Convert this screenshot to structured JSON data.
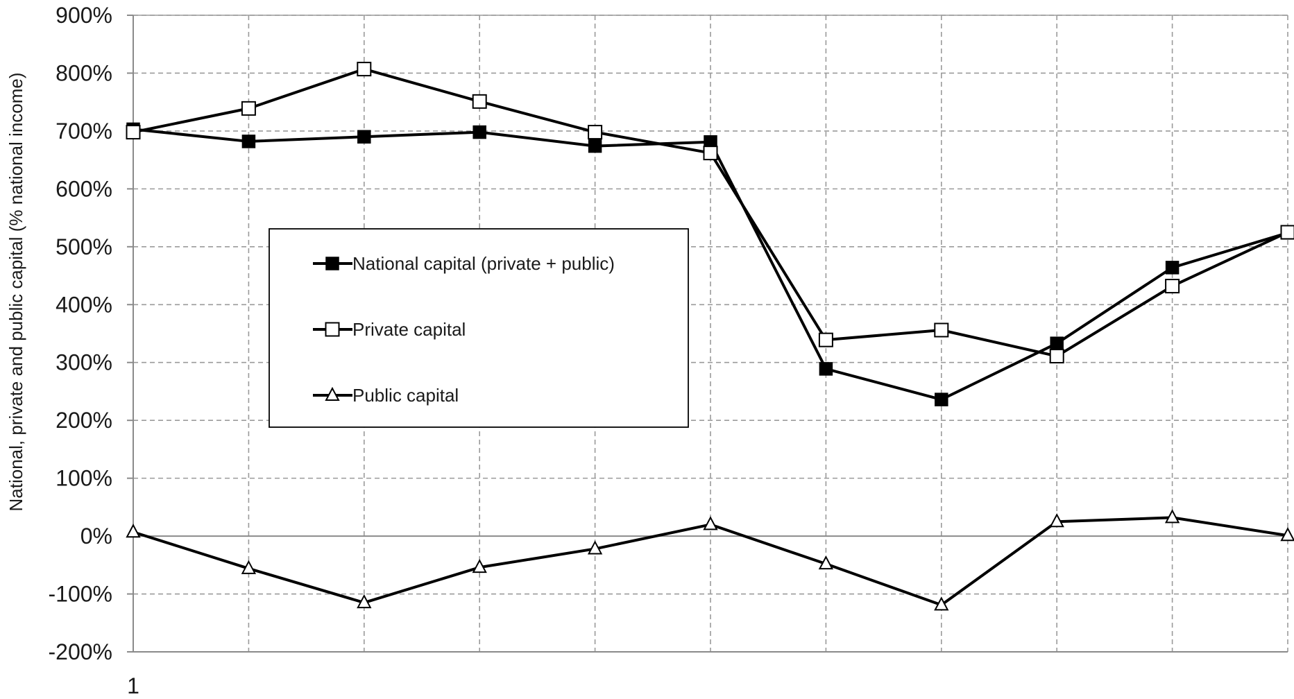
{
  "chart_data": {
    "type": "line",
    "x_tick_labels": [
      "1"
    ],
    "ylabel": "National, private and public capital (% national income)",
    "ylim": [
      -200,
      900
    ],
    "y_ticks": [
      -200,
      -100,
      0,
      100,
      200,
      300,
      400,
      500,
      600,
      700,
      800,
      900
    ],
    "y_tick_format": "percent",
    "grid": true,
    "grid_style": "dashed",
    "legend_position": "center-left",
    "series": [
      {
        "name": "National capital (private + public)",
        "marker": "filled-square",
        "color": "#000000",
        "values": [
          703,
          682,
          690,
          698,
          674,
          681,
          289,
          236,
          333,
          464,
          524
        ]
      },
      {
        "name": "Private capital",
        "marker": "open-square",
        "color": "#000000",
        "values": [
          698,
          739,
          807,
          751,
          698,
          662,
          339,
          356,
          311,
          432,
          525
        ]
      },
      {
        "name": "Public capital",
        "marker": "open-triangle",
        "color": "#000000",
        "values": [
          7,
          -56,
          -115,
          -54,
          -22,
          20,
          -48,
          -119,
          25,
          32,
          1
        ]
      }
    ]
  }
}
